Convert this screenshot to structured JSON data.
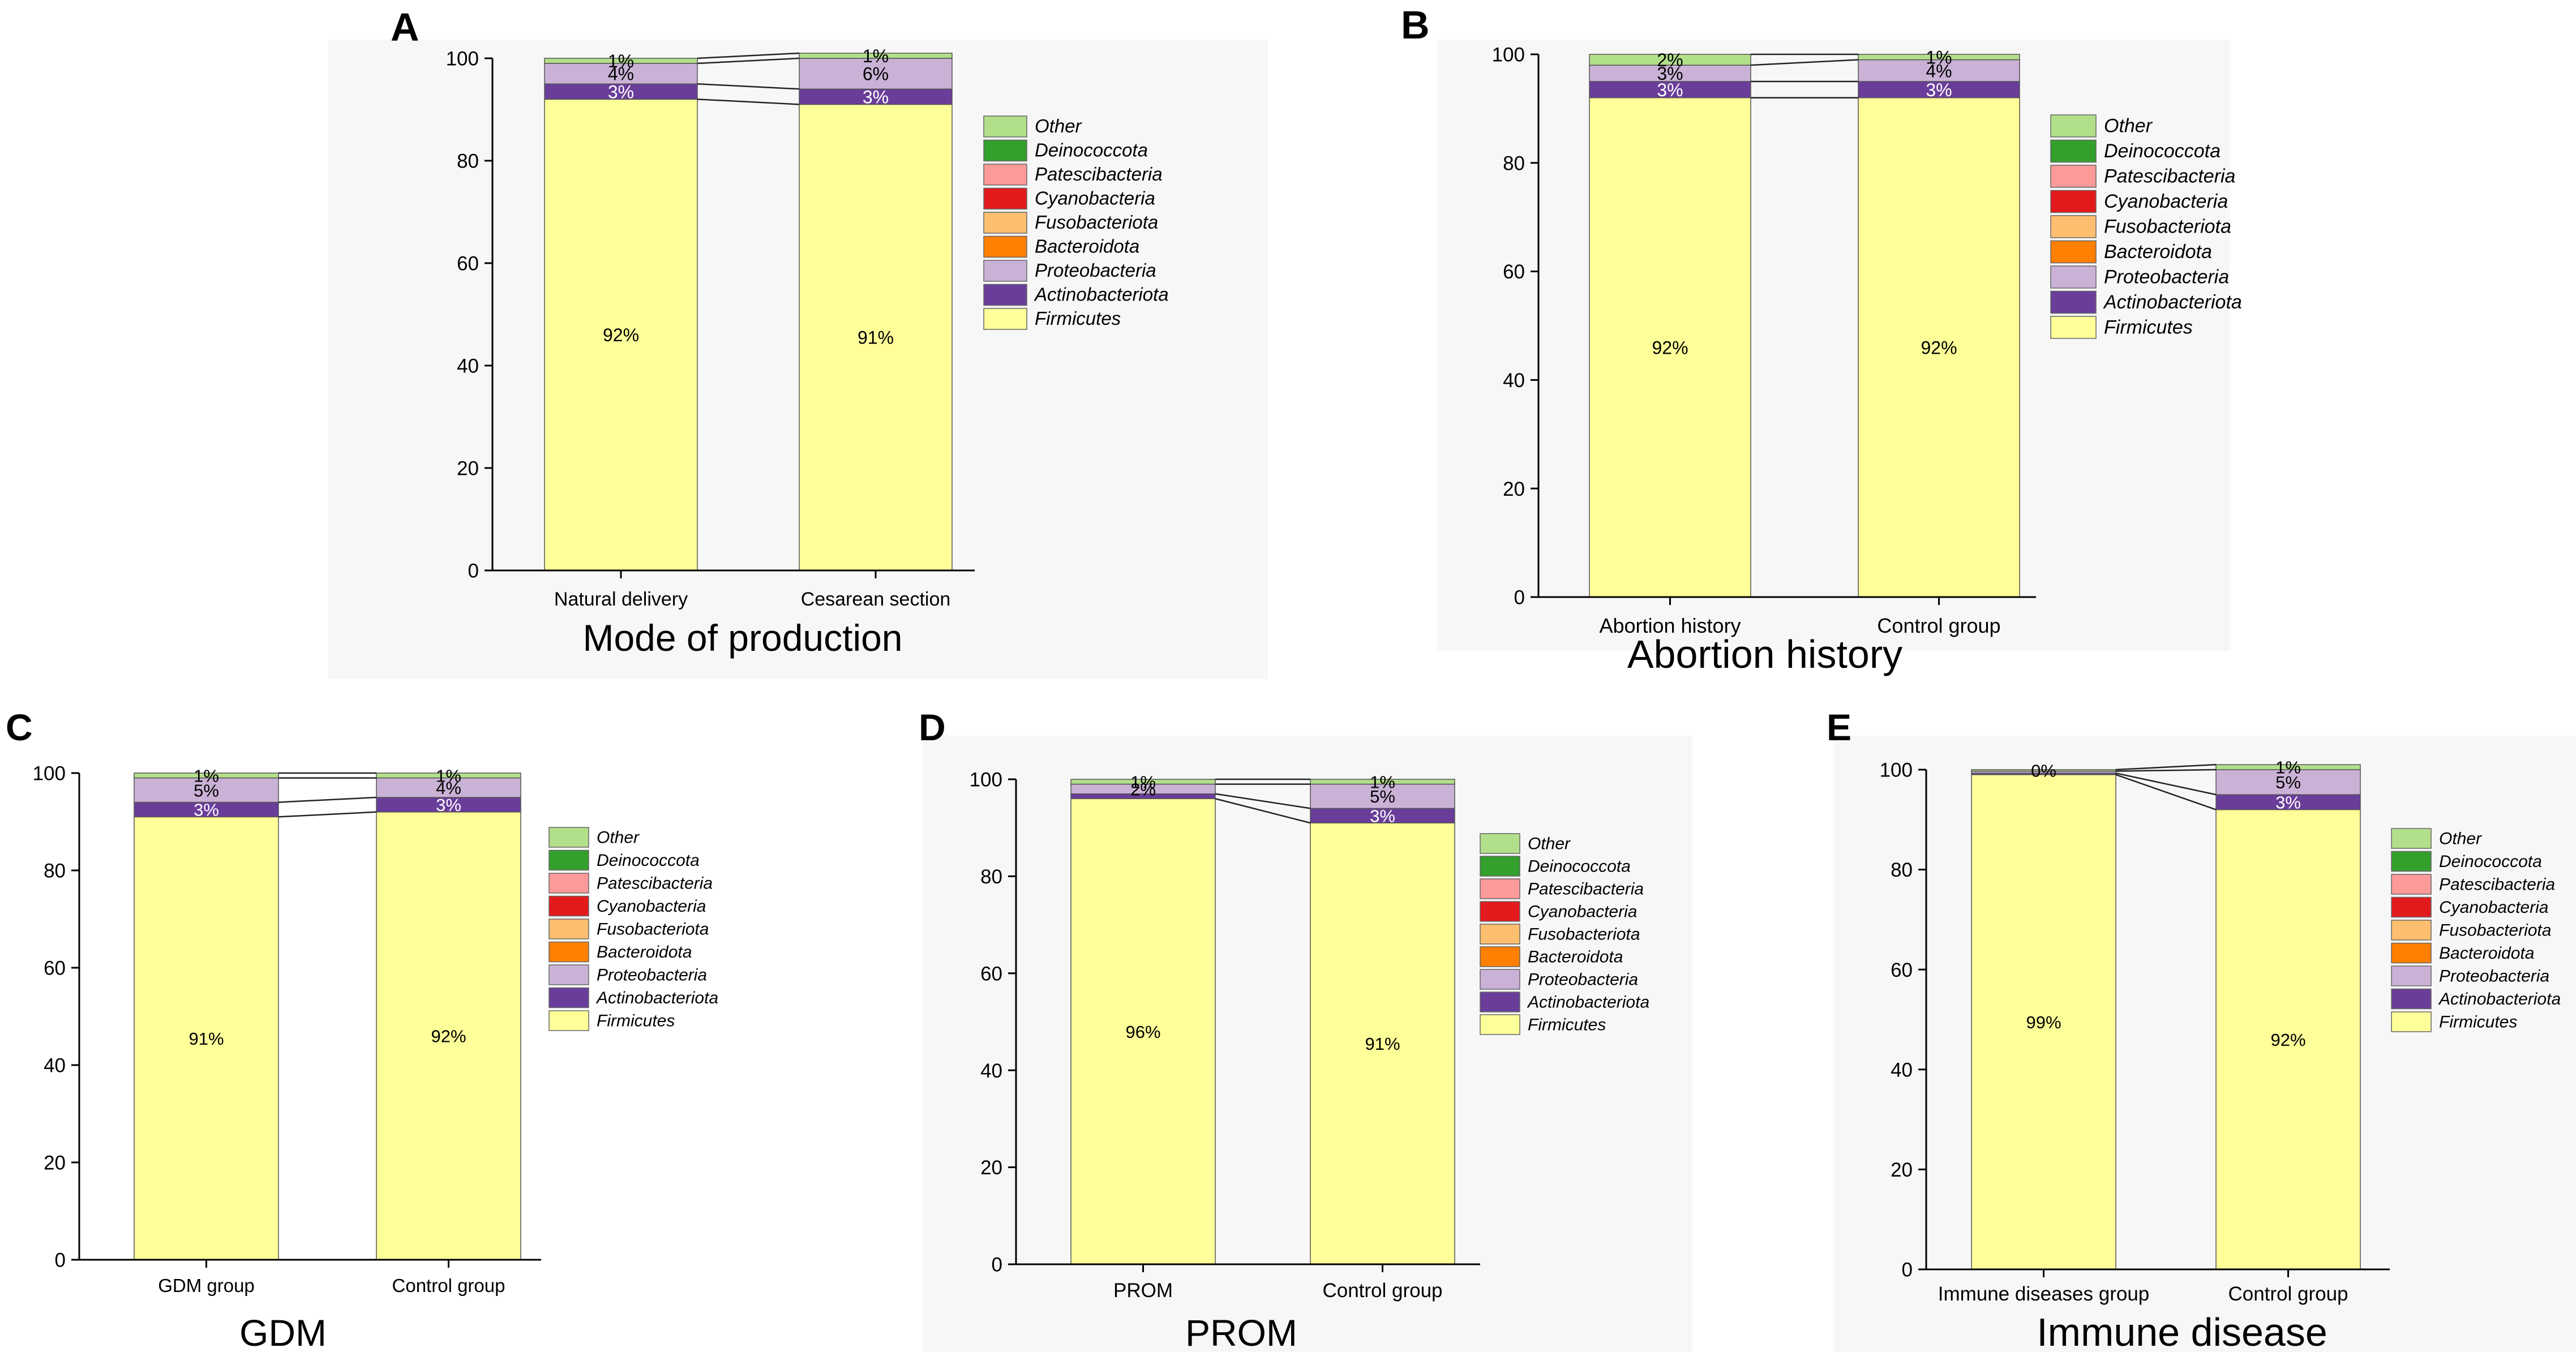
{
  "colors": {
    "Firmicutes": "#ffff99",
    "Actinobacteriota": "#6a3d9a",
    "Proteobacteria": "#cab2d6",
    "Bacteroidota": "#ff7f00",
    "Fusobacteriota": "#fdbf6f",
    "Cyanobacteria": "#e31a1c",
    "Patescibacteria": "#fb9a99",
    "Deinococcota": "#33a02c",
    "Other": "#b2df8a"
  },
  "legend_order": [
    "Other",
    "Deinococcota",
    "Patescibacteria",
    "Cyanobacteria",
    "Fusobacteriota",
    "Bacteroidota",
    "Proteobacteria",
    "Actinobacteriota",
    "Firmicutes"
  ],
  "stack_order": [
    "Firmicutes",
    "Actinobacteriota",
    "Proteobacteria",
    "Bacteroidota",
    "Fusobacteriota",
    "Cyanobacteria",
    "Patescibacteria",
    "Deinococcota",
    "Other"
  ],
  "chart_data": [
    {
      "type": "bar",
      "letter": "A",
      "title": "Mode of production",
      "ylim": [
        0,
        100
      ],
      "yticks": [
        0,
        20,
        40,
        60,
        80,
        100
      ],
      "categories": [
        "Natural delivery",
        "Cesarean section"
      ],
      "series": [
        {
          "name": "Firmicutes",
          "values": [
            92,
            91
          ],
          "labels": [
            "92%",
            "91%"
          ]
        },
        {
          "name": "Actinobacteriota",
          "values": [
            3,
            3
          ],
          "labels": [
            "3%",
            "3%"
          ]
        },
        {
          "name": "Proteobacteria",
          "values": [
            4,
            6
          ],
          "labels": [
            "4%",
            "6%"
          ]
        },
        {
          "name": "Bacteroidota",
          "values": [
            0,
            0
          ],
          "labels": [
            "",
            ""
          ]
        },
        {
          "name": "Fusobacteriota",
          "values": [
            0,
            0
          ],
          "labels": [
            "",
            ""
          ]
        },
        {
          "name": "Cyanobacteria",
          "values": [
            0,
            0
          ],
          "labels": [
            "",
            ""
          ]
        },
        {
          "name": "Patescibacteria",
          "values": [
            0,
            0
          ],
          "labels": [
            "",
            ""
          ]
        },
        {
          "name": "Deinococcota",
          "values": [
            0,
            0
          ],
          "labels": [
            "",
            ""
          ]
        },
        {
          "name": "Other",
          "values": [
            1,
            1
          ],
          "labels": [
            "1%",
            "1%"
          ]
        }
      ]
    },
    {
      "type": "bar",
      "letter": "B",
      "title": "Abortion history",
      "ylim": [
        0,
        100
      ],
      "yticks": [
        0,
        20,
        40,
        60,
        80,
        100
      ],
      "categories": [
        "Abortion history",
        "Control group"
      ],
      "series": [
        {
          "name": "Firmicutes",
          "values": [
            92,
            92
          ],
          "labels": [
            "92%",
            "92%"
          ]
        },
        {
          "name": "Actinobacteriota",
          "values": [
            3,
            3
          ],
          "labels": [
            "3%",
            "3%"
          ]
        },
        {
          "name": "Proteobacteria",
          "values": [
            3,
            4
          ],
          "labels": [
            "3%",
            "4%"
          ]
        },
        {
          "name": "Bacteroidota",
          "values": [
            0,
            0
          ],
          "labels": [
            "",
            ""
          ]
        },
        {
          "name": "Fusobacteriota",
          "values": [
            0,
            0
          ],
          "labels": [
            "",
            ""
          ]
        },
        {
          "name": "Cyanobacteria",
          "values": [
            0,
            0
          ],
          "labels": [
            "",
            ""
          ]
        },
        {
          "name": "Patescibacteria",
          "values": [
            0,
            0
          ],
          "labels": [
            "",
            ""
          ]
        },
        {
          "name": "Deinococcota",
          "values": [
            0,
            0
          ],
          "labels": [
            "",
            ""
          ]
        },
        {
          "name": "Other",
          "values": [
            2,
            1
          ],
          "labels": [
            "2%",
            "1%"
          ]
        }
      ]
    },
    {
      "type": "bar",
      "letter": "C",
      "title": "GDM",
      "ylim": [
        0,
        100
      ],
      "yticks": [
        0,
        20,
        40,
        60,
        80,
        100
      ],
      "categories": [
        "GDM group",
        "Control group"
      ],
      "series": [
        {
          "name": "Firmicutes",
          "values": [
            91,
            92
          ],
          "labels": [
            "91%",
            "92%"
          ]
        },
        {
          "name": "Actinobacteriota",
          "values": [
            3,
            3
          ],
          "labels": [
            "3%",
            "3%"
          ]
        },
        {
          "name": "Proteobacteria",
          "values": [
            5,
            4
          ],
          "labels": [
            "5%",
            "4%"
          ]
        },
        {
          "name": "Bacteroidota",
          "values": [
            0,
            0
          ],
          "labels": [
            "",
            ""
          ]
        },
        {
          "name": "Fusobacteriota",
          "values": [
            0,
            0
          ],
          "labels": [
            "",
            ""
          ]
        },
        {
          "name": "Cyanobacteria",
          "values": [
            0,
            0
          ],
          "labels": [
            "",
            ""
          ]
        },
        {
          "name": "Patescibacteria",
          "values": [
            0,
            0
          ],
          "labels": [
            "",
            ""
          ]
        },
        {
          "name": "Deinococcota",
          "values": [
            0,
            0
          ],
          "labels": [
            "",
            ""
          ]
        },
        {
          "name": "Other",
          "values": [
            1,
            1
          ],
          "labels": [
            "1%",
            "1%"
          ]
        }
      ]
    },
    {
      "type": "bar",
      "letter": "D",
      "title": "PROM",
      "ylim": [
        0,
        100
      ],
      "yticks": [
        0,
        20,
        40,
        60,
        80,
        100
      ],
      "categories": [
        "PROM",
        "Control group"
      ],
      "series": [
        {
          "name": "Firmicutes",
          "values": [
            96,
            91
          ],
          "labels": [
            "96%",
            "91%"
          ]
        },
        {
          "name": "Actinobacteriota",
          "values": [
            1,
            3
          ],
          "labels": [
            "",
            "3%"
          ]
        },
        {
          "name": "Proteobacteria",
          "values": [
            2,
            5
          ],
          "labels": [
            "2%",
            "5%"
          ]
        },
        {
          "name": "Bacteroidota",
          "values": [
            0,
            0
          ],
          "labels": [
            "",
            ""
          ]
        },
        {
          "name": "Fusobacteriota",
          "values": [
            0,
            0
          ],
          "labels": [
            "",
            ""
          ]
        },
        {
          "name": "Cyanobacteria",
          "values": [
            0,
            0
          ],
          "labels": [
            "",
            ""
          ]
        },
        {
          "name": "Patescibacteria",
          "values": [
            0,
            0
          ],
          "labels": [
            "",
            ""
          ]
        },
        {
          "name": "Deinococcota",
          "values": [
            0,
            0
          ],
          "labels": [
            "",
            ""
          ]
        },
        {
          "name": "Other",
          "values": [
            1,
            1
          ],
          "labels": [
            "1%",
            "1%"
          ]
        }
      ]
    },
    {
      "type": "bar",
      "letter": "E",
      "title": "Immune disease",
      "ylim": [
        0,
        100
      ],
      "yticks": [
        0,
        20,
        40,
        60,
        80,
        100
      ],
      "categories": [
        "Immune diseases group",
        "Control group"
      ],
      "series": [
        {
          "name": "Firmicutes",
          "values": [
            99,
            92
          ],
          "labels": [
            "99%",
            "92%"
          ]
        },
        {
          "name": "Actinobacteriota",
          "values": [
            0.3,
            3
          ],
          "labels": [
            "",
            "3%"
          ]
        },
        {
          "name": "Proteobacteria",
          "values": [
            0.4,
            5
          ],
          "labels": [
            "",
            "5%"
          ]
        },
        {
          "name": "Bacteroidota",
          "values": [
            0,
            0
          ],
          "labels": [
            "",
            ""
          ]
        },
        {
          "name": "Fusobacteriota",
          "values": [
            0,
            0
          ],
          "labels": [
            "",
            ""
          ]
        },
        {
          "name": "Cyanobacteria",
          "values": [
            0,
            0
          ],
          "labels": [
            "",
            ""
          ]
        },
        {
          "name": "Patescibacteria",
          "values": [
            0,
            0
          ],
          "labels": [
            "",
            ""
          ]
        },
        {
          "name": "Deinococcota",
          "values": [
            0,
            0
          ],
          "labels": [
            "",
            ""
          ]
        },
        {
          "name": "Other",
          "values": [
            0.3,
            1
          ],
          "labels": [
            "0%",
            "1%"
          ]
        }
      ]
    }
  ]
}
